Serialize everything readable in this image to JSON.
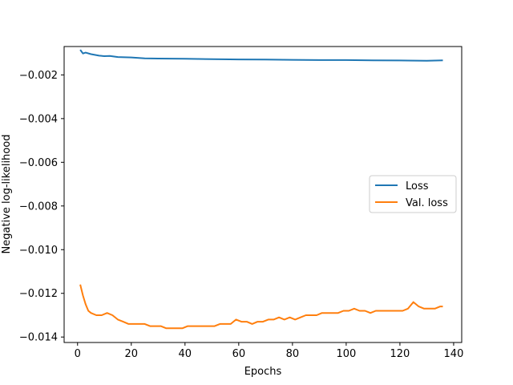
{
  "chart_data": {
    "type": "line",
    "title": "",
    "xlabel": "Epochs",
    "ylabel": "Negative log-likelihood",
    "xlim": [
      -5,
      143
    ],
    "ylim": [
      -0.01425,
      -0.0007
    ],
    "x_ticks": [
      0,
      20,
      40,
      60,
      80,
      100,
      120,
      140
    ],
    "x_tick_labels": [
      "0",
      "20",
      "40",
      "60",
      "80",
      "100",
      "120",
      "140"
    ],
    "y_ticks": [
      -0.002,
      -0.004,
      -0.006,
      -0.008,
      -0.01,
      -0.012,
      -0.014
    ],
    "y_tick_labels": [
      "−0.002",
      "−0.004",
      "−0.006",
      "−0.008",
      "−0.010",
      "−0.012",
      "−0.014"
    ],
    "grid": false,
    "legend_position": "center-right",
    "series": [
      {
        "name": "Loss",
        "color": "#1f77b4",
        "x": [
          1,
          2,
          3,
          5,
          8,
          10,
          12,
          15,
          20,
          25,
          30,
          40,
          50,
          60,
          70,
          80,
          90,
          100,
          110,
          120,
          130,
          136
        ],
        "y": [
          -0.00085,
          -0.00102,
          -0.00098,
          -0.00105,
          -0.00112,
          -0.00114,
          -0.00113,
          -0.00118,
          -0.0012,
          -0.00124,
          -0.00125,
          -0.00126,
          -0.00128,
          -0.00129,
          -0.0013,
          -0.00131,
          -0.00132,
          -0.00132,
          -0.00133,
          -0.00134,
          -0.00135,
          -0.00133
        ]
      },
      {
        "name": "Val. loss",
        "color": "#ff7f0e",
        "x": [
          1,
          2,
          3,
          4,
          5,
          7,
          9,
          11,
          13,
          15,
          17,
          19,
          21,
          23,
          25,
          27,
          29,
          31,
          33,
          35,
          37,
          39,
          41,
          43,
          45,
          47,
          49,
          51,
          53,
          55,
          57,
          59,
          61,
          63,
          65,
          67,
          69,
          71,
          73,
          75,
          77,
          79,
          81,
          83,
          85,
          87,
          89,
          91,
          93,
          95,
          97,
          99,
          101,
          103,
          105,
          107,
          109,
          111,
          113,
          115,
          117,
          119,
          121,
          123,
          125,
          127,
          129,
          131,
          133,
          135,
          136
        ],
        "y": [
          -0.0116,
          -0.0121,
          -0.0125,
          -0.0128,
          -0.0129,
          -0.013,
          -0.013,
          -0.0129,
          -0.013,
          -0.0132,
          -0.0133,
          -0.0134,
          -0.0134,
          -0.0134,
          -0.0134,
          -0.0135,
          -0.0135,
          -0.0135,
          -0.0136,
          -0.0136,
          -0.0136,
          -0.0136,
          -0.0135,
          -0.0135,
          -0.0135,
          -0.0135,
          -0.0135,
          -0.0135,
          -0.0134,
          -0.0134,
          -0.0134,
          -0.0132,
          -0.0133,
          -0.0133,
          -0.0134,
          -0.0133,
          -0.0133,
          -0.0132,
          -0.0132,
          -0.0131,
          -0.0132,
          -0.0131,
          -0.0132,
          -0.0131,
          -0.013,
          -0.013,
          -0.013,
          -0.0129,
          -0.0129,
          -0.0129,
          -0.0129,
          -0.0128,
          -0.0128,
          -0.0127,
          -0.0128,
          -0.0128,
          -0.0129,
          -0.0128,
          -0.0128,
          -0.0128,
          -0.0128,
          -0.0128,
          -0.0128,
          -0.0127,
          -0.0124,
          -0.0126,
          -0.0127,
          -0.0127,
          -0.0127,
          -0.0126,
          -0.0126
        ]
      }
    ]
  }
}
